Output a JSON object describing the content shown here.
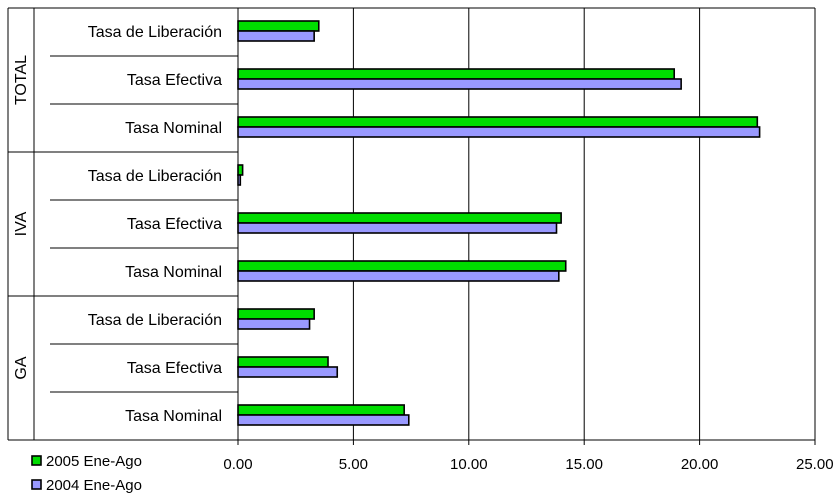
{
  "chart_data": {
    "type": "bar",
    "orientation": "horizontal",
    "title": "",
    "xlabel": "",
    "ylabel": "",
    "xlim": [
      0,
      25
    ],
    "x_ticks": [
      "0.00",
      "5.00",
      "10.00",
      "15.00",
      "20.00",
      "25.00"
    ],
    "grid": "vertical",
    "legend_position": "bottom-left",
    "groups": [
      {
        "label": "TOTAL",
        "categories": [
          "Tasa de Liberación",
          "Tasa Efectiva",
          "Tasa Nominal"
        ]
      },
      {
        "label": "IVA",
        "categories": [
          "Tasa de Liberación",
          "Tasa Efectiva",
          "Tasa Nominal"
        ]
      },
      {
        "label": "GA",
        "categories": [
          "Tasa de Liberación",
          "Tasa Efectiva",
          "Tasa Nominal"
        ]
      }
    ],
    "series": [
      {
        "name": "2005 Ene-Ago",
        "color": "#00dd00",
        "values": [
          3.5,
          18.9,
          22.5,
          0.2,
          14.0,
          14.2,
          3.3,
          3.9,
          7.2
        ]
      },
      {
        "name": "2004 Ene-Ago",
        "color": "#9999ff",
        "values": [
          3.3,
          19.2,
          22.6,
          0.1,
          13.8,
          13.9,
          3.1,
          4.3,
          7.4
        ]
      }
    ]
  }
}
